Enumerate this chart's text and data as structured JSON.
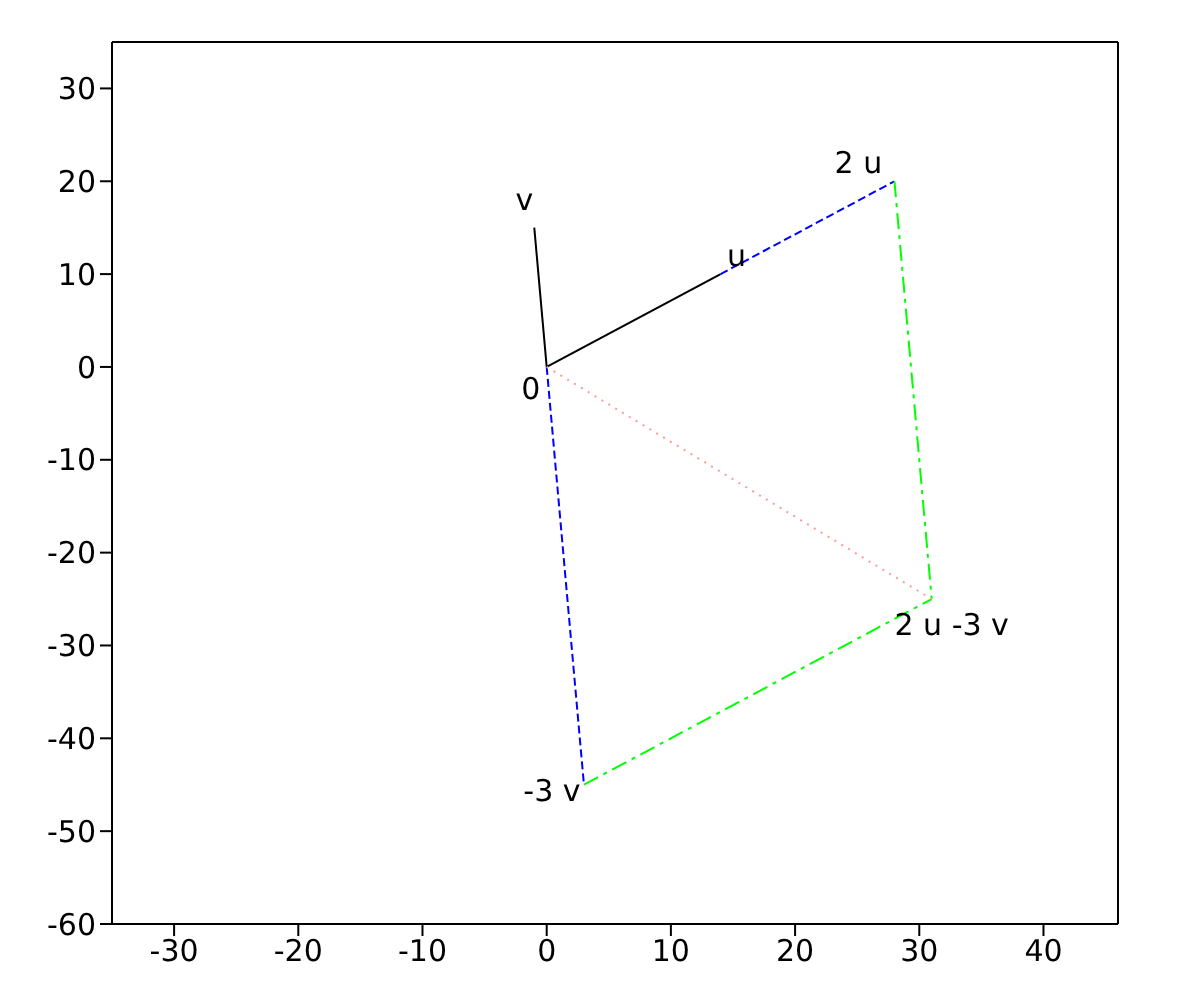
{
  "chart_data": {
    "type": "line",
    "xlim": [
      -35,
      46
    ],
    "ylim": [
      -60,
      35
    ],
    "xticks": [
      -30,
      -20,
      -10,
      0,
      10,
      20,
      30,
      40
    ],
    "yticks": [
      -60,
      -50,
      -40,
      -30,
      -20,
      -10,
      0,
      10,
      20,
      30
    ],
    "marker": "none",
    "series": [
      {
        "x": [
          0,
          14
        ],
        "values": [
          0,
          10
        ],
        "color": "#000000",
        "line_style": "solid"
      },
      {
        "x": [
          0,
          -1
        ],
        "values": [
          0,
          15
        ],
        "color": "#000000",
        "line_style": "solid"
      },
      {
        "x": [
          14,
          28
        ],
        "values": [
          10,
          20
        ],
        "color": "#0000ff",
        "line_style": "dashed"
      },
      {
        "x": [
          0,
          3
        ],
        "values": [
          0,
          -45
        ],
        "color": "#0000ff",
        "line_style": "dashed"
      },
      {
        "x": [
          28,
          31
        ],
        "values": [
          20,
          -25
        ],
        "color": "#00ff00",
        "line_style": "dashdot"
      },
      {
        "x": [
          3,
          31
        ],
        "values": [
          -45,
          -25
        ],
        "color": "#00ff00",
        "line_style": "dashdot"
      },
      {
        "x": [
          0,
          31
        ],
        "values": [
          0,
          -25
        ],
        "color": "#ff9999",
        "line_style": "dotted"
      }
    ],
    "annotations": [
      {
        "text": "0",
        "x": 0,
        "y": 0
      },
      {
        "text": "u",
        "x": 14,
        "y": 10
      },
      {
        "text": "v",
        "x": -1,
        "y": 15
      },
      {
        "text": "2 u",
        "x": 28,
        "y": 20
      },
      {
        "text": "-3 v",
        "x": 3,
        "y": -45
      },
      {
        "text": "2 u -3 v",
        "x": 31,
        "y": -25
      }
    ]
  }
}
